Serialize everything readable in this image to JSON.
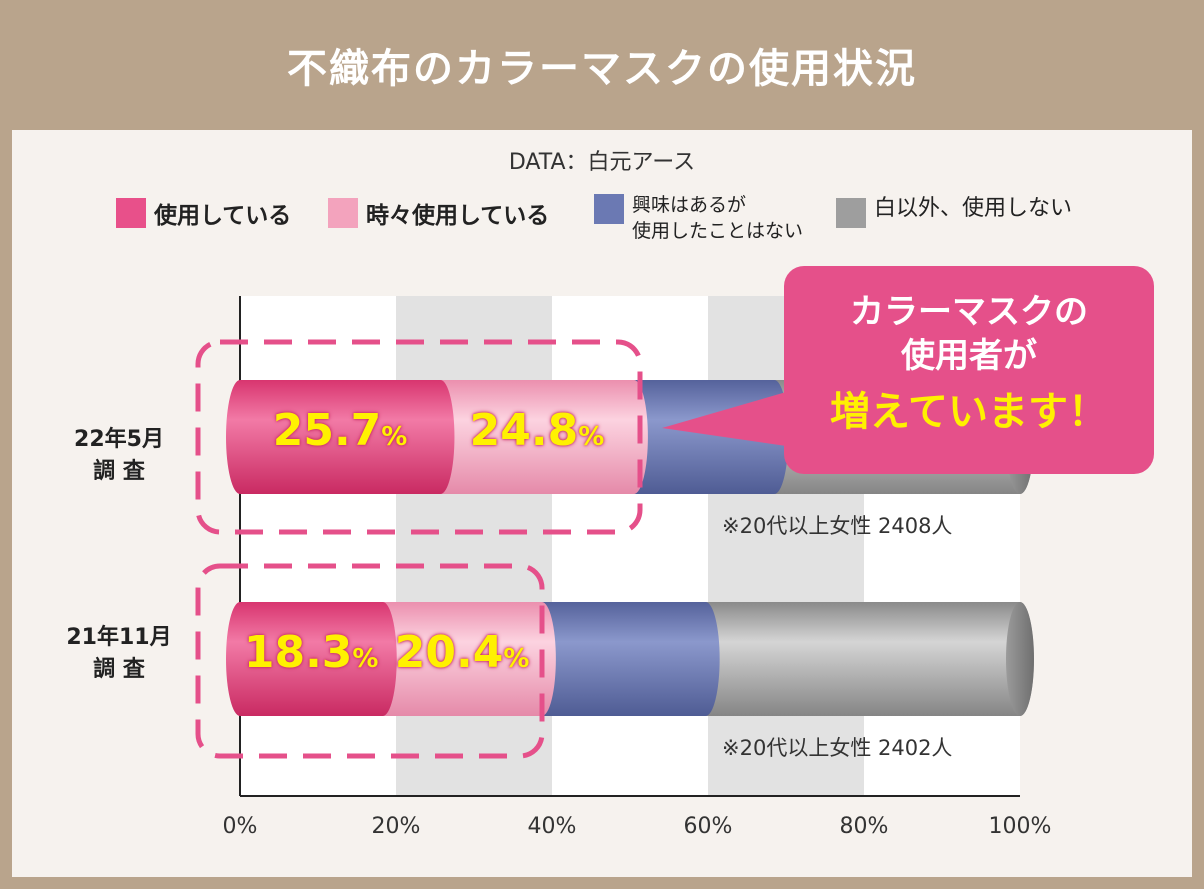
{
  "title": "不織布のカラーマスクの使用状況",
  "source": "DATA：白元アース",
  "legend": [
    {
      "label": "使用している",
      "color": "#e8508a"
    },
    {
      "label": "時々使用している",
      "color": "#f3a3bd"
    },
    {
      "label": "興味はあるが\n使用したことはない",
      "color": "#6b79b3"
    },
    {
      "label": "白以外、使用しない",
      "color": "#9e9e9e"
    }
  ],
  "callout": {
    "line1": "カラーマスクの",
    "line2": "使用者が",
    "line3": "増えています！"
  },
  "chart_data": {
    "type": "bar",
    "orientation": "horizontal",
    "stacked": true,
    "categories": [
      "22年5月\n調 査",
      "21年11月\n調 査"
    ],
    "series": [
      {
        "name": "使用している",
        "values": [
          25.7,
          18.3
        ],
        "value_labels": [
          "25.7",
          "18.3"
        ]
      },
      {
        "name": "時々使用している",
        "values": [
          24.8,
          20.4
        ],
        "value_labels": [
          "24.8",
          "20.4"
        ]
      },
      {
        "name": "興味はあるが使用したことはない",
        "values": [
          18,
          21
        ]
      },
      {
        "name": "白以外、使用しない",
        "values": [
          31.5,
          40.3
        ]
      }
    ],
    "x_ticks": [
      "0%",
      "20%",
      "40%",
      "60%",
      "80%",
      "100%"
    ],
    "xlim": [
      0,
      100
    ],
    "percent_unit": "%",
    "notes": [
      "※20代以上女性 2408人",
      "※20代以上女性 2402人"
    ]
  }
}
